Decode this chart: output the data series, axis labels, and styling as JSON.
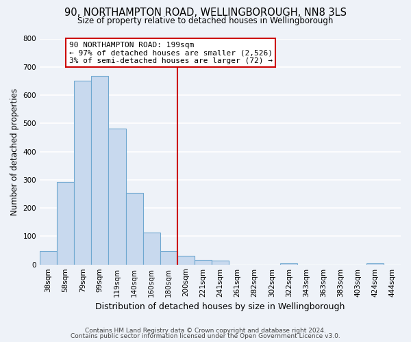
{
  "title": "90, NORTHAMPTON ROAD, WELLINGBOROUGH, NN8 3LS",
  "subtitle": "Size of property relative to detached houses in Wellingborough",
  "xlabel": "Distribution of detached houses by size in Wellingborough",
  "ylabel": "Number of detached properties",
  "bar_labels": [
    "38sqm",
    "58sqm",
    "79sqm",
    "99sqm",
    "119sqm",
    "140sqm",
    "160sqm",
    "180sqm",
    "200sqm",
    "221sqm",
    "241sqm",
    "261sqm",
    "282sqm",
    "302sqm",
    "322sqm",
    "343sqm",
    "363sqm",
    "383sqm",
    "403sqm",
    "424sqm",
    "444sqm"
  ],
  "bar_values": [
    47,
    293,
    652,
    668,
    481,
    254,
    114,
    48,
    30,
    17,
    14,
    0,
    0,
    0,
    5,
    0,
    0,
    0,
    0,
    5,
    0
  ],
  "bar_color": "#c8d9ee",
  "bar_edge_color": "#6fa8d0",
  "vline_color": "#cc0000",
  "annotation_title": "90 NORTHAMPTON ROAD: 199sqm",
  "annotation_line1": "← 97% of detached houses are smaller (2,526)",
  "annotation_line2": "3% of semi-detached houses are larger (72) →",
  "annotation_box_color": "#ffffff",
  "annotation_box_edge": "#cc0000",
  "ylim": [
    0,
    800
  ],
  "yticks": [
    0,
    100,
    200,
    300,
    400,
    500,
    600,
    700,
    800
  ],
  "footer_line1": "Contains HM Land Registry data © Crown copyright and database right 2024.",
  "footer_line2": "Contains public sector information licensed under the Open Government Licence v3.0.",
  "bg_color": "#eef2f8",
  "plot_bg_color": "#eef2f8",
  "grid_color": "#ffffff",
  "title_fontsize": 10.5,
  "subtitle_fontsize": 8.5,
  "ylabel_fontsize": 8.5,
  "xlabel_fontsize": 9,
  "tick_fontsize": 7.5,
  "annotation_fontsize": 8,
  "footer_fontsize": 6.5
}
